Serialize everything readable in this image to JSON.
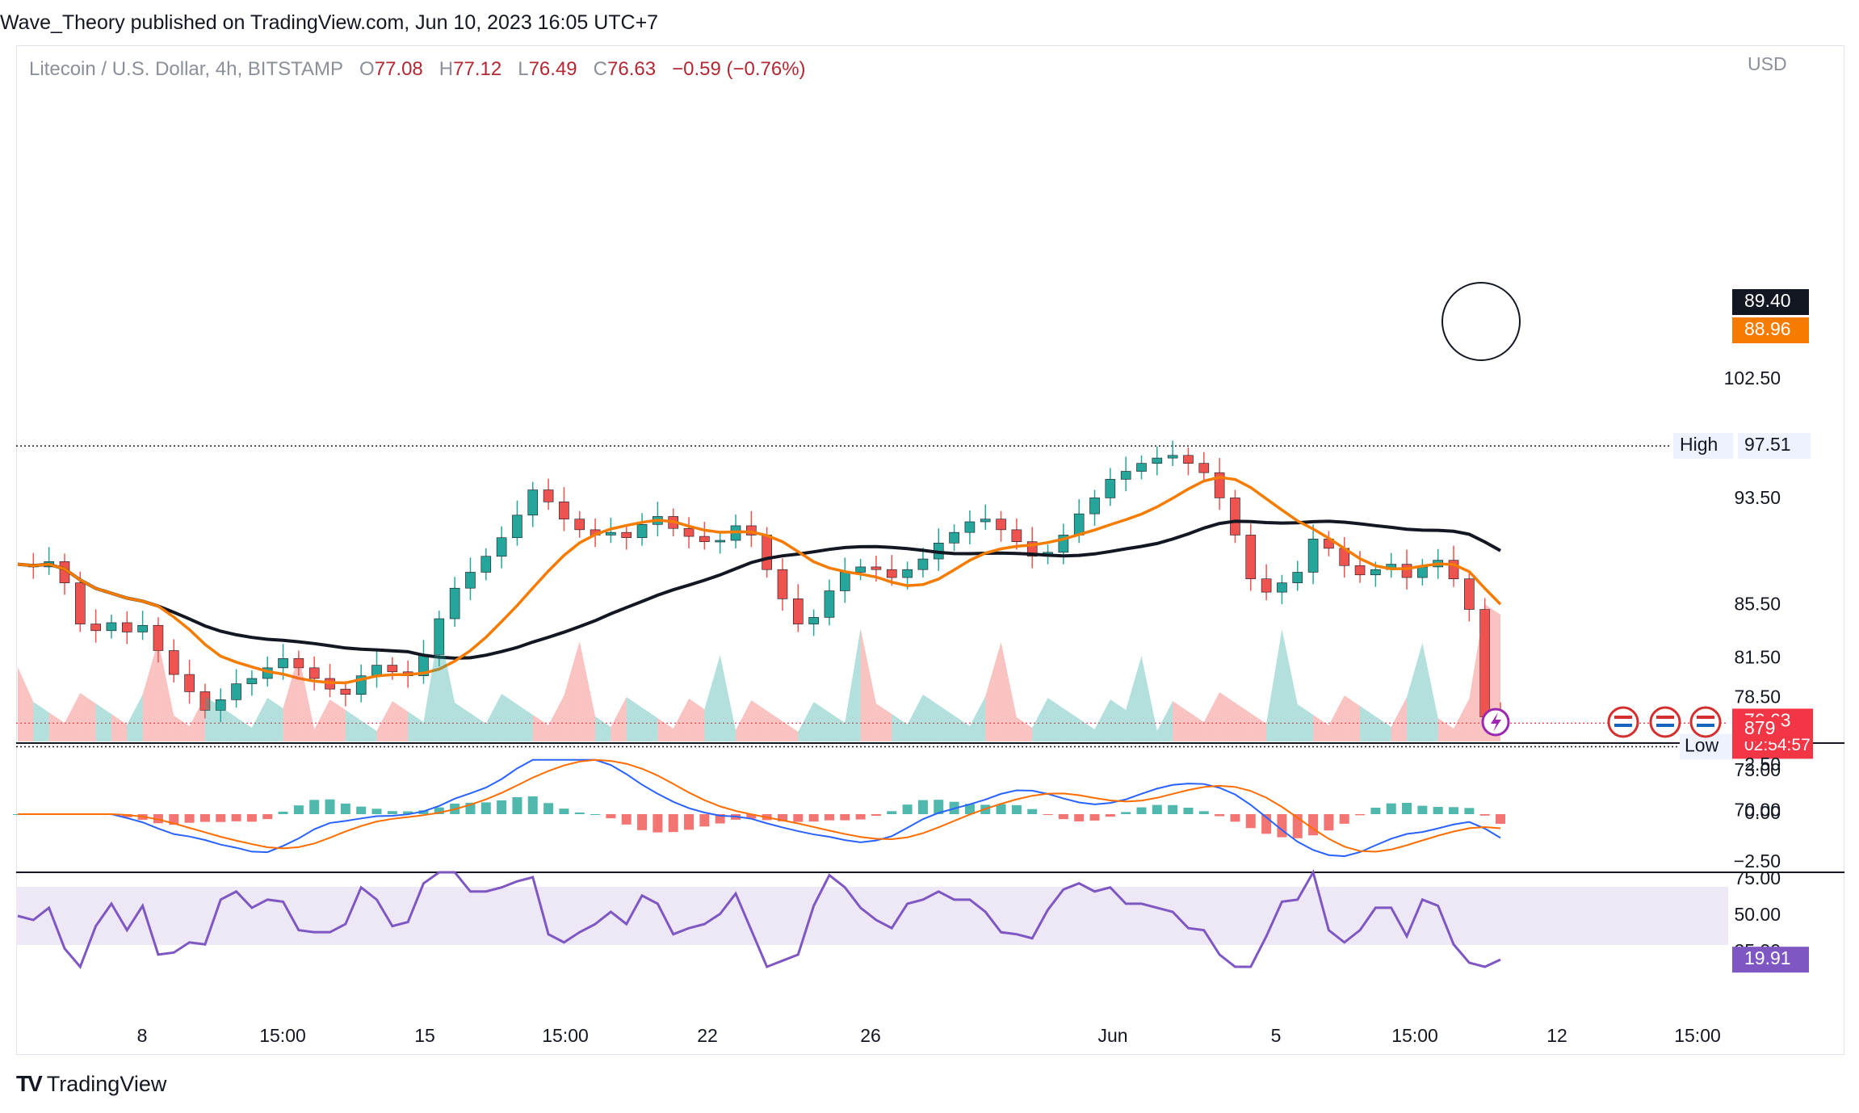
{
  "header": {
    "published": "Wave_Theory published on TradingView.com, Jun 10, 2023 16:05 UTC+7"
  },
  "legend": {
    "symbol": "Litecoin / U.S. Dollar, 4h, BITSTAMP",
    "o_label": "O",
    "o_value": "77.08",
    "h_label": "H",
    "h_value": "77.12",
    "l_label": "L",
    "l_value": "76.49",
    "c_label": "C",
    "c_value": "76.63",
    "change": "−0.59 (−0.76%)"
  },
  "currency": "USD",
  "footer": {
    "brand": "TradingView",
    "logo": "TV"
  },
  "chart_data": [
    {
      "type": "candlestick",
      "pane": "price",
      "symbol": "LTCUSD",
      "y_ticks": [
        "102.50",
        "93.50",
        "85.50",
        "81.50",
        "78.50",
        "73.00",
        "70.00"
      ],
      "x_ticks": [
        "8",
        "15:00",
        "15",
        "15:00",
        "22",
        "26",
        "Jun",
        "5",
        "15:00",
        "12",
        "15:00"
      ],
      "close_path": [
        88.6,
        88.4,
        88.8,
        87.2,
        84.1,
        83.6,
        84.2,
        83.5,
        84.0,
        82.1,
        80.3,
        79.0,
        77.6,
        78.4,
        79.6,
        80.0,
        80.8,
        81.5,
        80.8,
        80.0,
        79.2,
        78.8,
        80.2,
        81.0,
        80.5,
        80.2,
        81.8,
        84.5,
        86.8,
        88.0,
        89.2,
        90.6,
        92.3,
        94.2,
        93.3,
        92.0,
        91.2,
        90.8,
        91.0,
        90.6,
        91.6,
        92.2,
        91.3,
        90.7,
        90.3,
        90.4,
        91.5,
        90.8,
        88.2,
        86.0,
        84.1,
        84.6,
        86.6,
        88.0,
        88.4,
        88.2,
        87.6,
        88.2,
        89.0,
        90.2,
        91.0,
        91.8,
        92.0,
        91.2,
        90.3,
        89.2,
        89.5,
        90.8,
        92.4,
        93.6,
        95.0,
        95.6,
        96.2,
        96.6,
        96.8,
        96.2,
        95.5,
        93.6,
        90.8,
        87.5,
        86.5,
        87.2,
        88.0,
        90.5,
        89.8,
        88.5,
        87.8,
        88.2,
        88.6,
        87.6,
        88.4,
        88.9,
        87.5,
        85.2,
        77.1,
        76.63
      ],
      "high": "97.51",
      "low": "74.86",
      "high_label": "High",
      "low_label": "Low",
      "last_price": "76.63",
      "countdown": "02:54:57",
      "ma_black": "89.40",
      "ma_orange": "88.96",
      "volume": "879",
      "colors": {
        "up": "#26a69a",
        "down": "#ef5350",
        "ma_black": "#131722",
        "ma_orange": "#f57c00",
        "last": "#f23645"
      }
    },
    {
      "type": "histogram",
      "pane": "macd",
      "y_ticks": [
        "2.50",
        "0.00",
        "−2.50"
      ],
      "colors": {
        "macd": "#2962ff",
        "signal": "#ff6d00",
        "hist_up": "#26a69a",
        "hist_down": "#ef5350"
      }
    },
    {
      "type": "line",
      "pane": "rsi",
      "y_ticks": [
        "75.00",
        "50.00",
        "25.00"
      ],
      "last_value": "19.91",
      "colors": {
        "line": "#7e57c2",
        "band": "#ede7f6"
      }
    }
  ]
}
